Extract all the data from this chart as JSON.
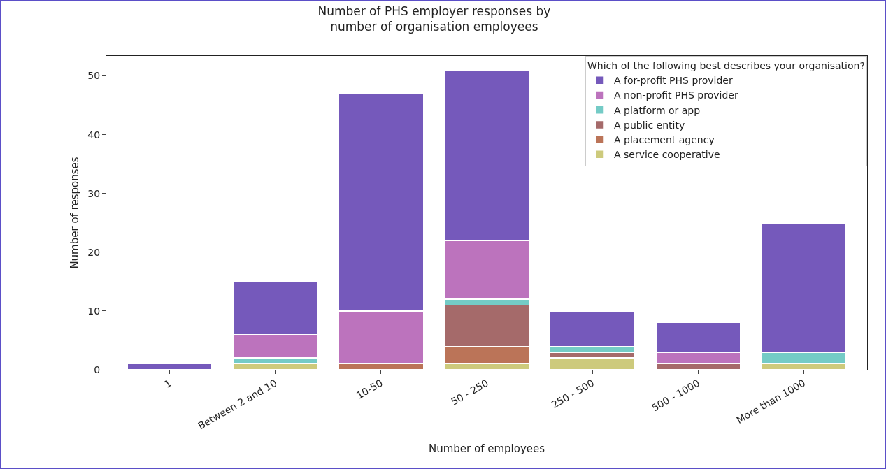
{
  "chart_data": {
    "type": "bar",
    "title": "Number of PHS employer responses by\nnumber of organisation employees",
    "xlabel": "Number of employees",
    "ylabel": "Number of responses",
    "legend_title": "Which of the following best describes your organisation?",
    "categories": [
      "1",
      "Between 2 and 10",
      "10-50",
      "50 - 250",
      "250 - 500",
      "500 - 1000",
      "More than 1000"
    ],
    "stacked": true,
    "series": [
      {
        "name": "A service cooperative",
        "color": "#cdca7c",
        "values": [
          0,
          1,
          0,
          1,
          2,
          0,
          1
        ]
      },
      {
        "name": "A placement agency",
        "color": "#bb7458",
        "values": [
          0,
          0,
          1,
          3,
          0,
          0,
          0
        ]
      },
      {
        "name": "A public entity",
        "color": "#a56a6a",
        "values": [
          0,
          0,
          0,
          7,
          1,
          1,
          0
        ]
      },
      {
        "name": "A platform or app",
        "color": "#74cbc6",
        "values": [
          0,
          1,
          0,
          1,
          1,
          0,
          2
        ]
      },
      {
        "name": "A non-profit PHS provider",
        "color": "#bc73bd",
        "values": [
          0,
          4,
          9,
          10,
          0,
          2,
          0
        ]
      },
      {
        "name": "A for-profit PHS provider",
        "color": "#7559bb",
        "values": [
          1,
          9,
          37,
          29,
          6,
          5,
          22
        ]
      }
    ],
    "ylim": [
      0,
      53.4
    ],
    "yticks": [
      0,
      10,
      20,
      30,
      40,
      50
    ],
    "grid": false,
    "legend": "top right"
  }
}
